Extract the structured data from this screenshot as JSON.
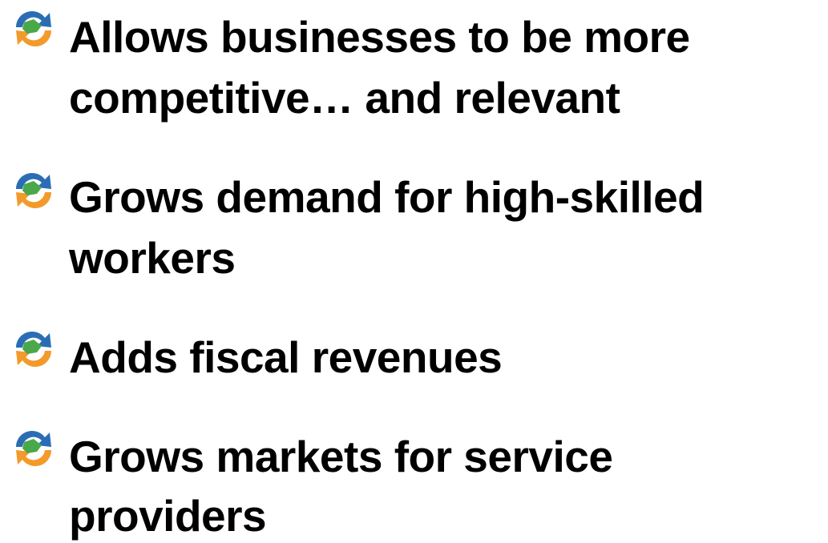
{
  "items": [
    {
      "lines": [
        "Allows businesses to be more",
        "competitive… and relevant"
      ]
    },
    {
      "lines": [
        "Grows demand for high-skilled",
        "workers"
      ]
    },
    {
      "lines": [
        "Adds fiscal revenues"
      ]
    },
    {
      "lines": [
        "Grows markets for service",
        "providers"
      ]
    }
  ]
}
